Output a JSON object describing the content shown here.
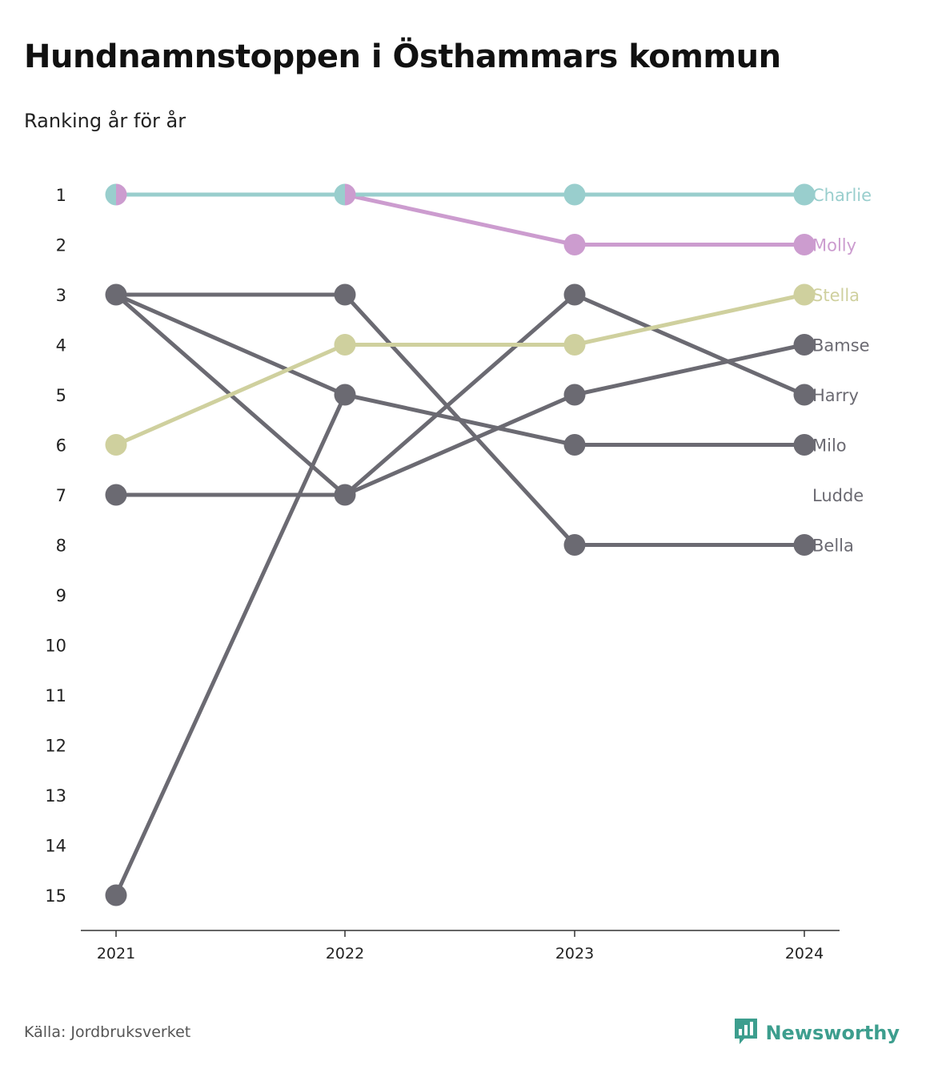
{
  "title": "Hundnamnstoppen i Östhammars kommun",
  "subtitle": "Ranking år för år",
  "source": "Källa: Jordbruksverket",
  "brand": "Newsworthy",
  "colors": {
    "highlight_1": "#99cecd",
    "highlight_2": "#cc9ccf",
    "highlight_3": "#cfd09e",
    "other": "#6b6a72",
    "brand": "#3d9e8e"
  },
  "chart_data": {
    "type": "line",
    "title": "Hundnamnstoppen i Östhammars kommun",
    "subtitle": "Ranking år för år",
    "x": [
      "2021",
      "2022",
      "2023",
      "2024"
    ],
    "y_ticks": [
      "1",
      "2",
      "3",
      "4",
      "5",
      "6",
      "7",
      "8",
      "9",
      "10",
      "11",
      "12",
      "13",
      "14",
      "15"
    ],
    "y_inverted": true,
    "ylim": [
      1,
      15
    ],
    "grid": false,
    "legend": "direct labels at right end",
    "series": [
      {
        "name": "Bella",
        "values": [
          3,
          3,
          8,
          8
        ],
        "color": "#6b6a72"
      },
      {
        "name": "Milo",
        "values": [
          3,
          5,
          6,
          6
        ],
        "color": "#6b6a72"
      },
      {
        "name": "Harry",
        "values": [
          7,
          7,
          3,
          5
        ],
        "color": "#6b6a72"
      },
      {
        "name": "Bamse",
        "values": [
          3,
          7,
          5,
          4
        ],
        "color": "#6b6a72"
      },
      {
        "name": "Ludde",
        "values": [
          15,
          5,
          null,
          null
        ],
        "color": "#6b6a72"
      },
      {
        "name": "Stella",
        "values": [
          6,
          4,
          4,
          3
        ],
        "color": "#cfd09e"
      },
      {
        "name": "Molly",
        "values": [
          1,
          1,
          2,
          2
        ],
        "color": "#cc9ccf"
      },
      {
        "name": "Charlie",
        "values": [
          1,
          1,
          1,
          1
        ],
        "color": "#99cecd"
      }
    ]
  }
}
